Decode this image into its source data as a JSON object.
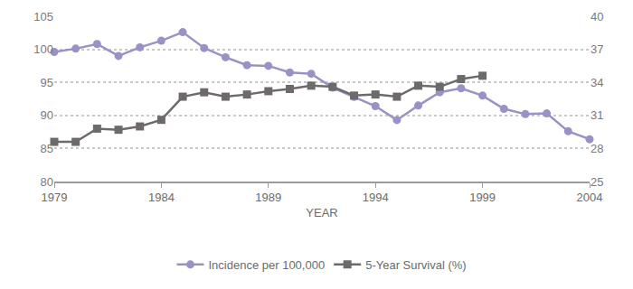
{
  "chart_data": {
    "type": "line",
    "x_label": "YEAR",
    "x": [
      1979,
      1980,
      1981,
      1982,
      1983,
      1984,
      1985,
      1986,
      1987,
      1988,
      1989,
      1990,
      1991,
      1992,
      1993,
      1994,
      1995,
      1996,
      1997,
      1998,
      1999,
      2000,
      2001,
      2002,
      2003,
      2004
    ],
    "xlim": [
      1979,
      2004
    ],
    "xticks": [
      1979,
      1984,
      1989,
      1994,
      1999,
      2004
    ],
    "ylim": [
      80,
      105
    ],
    "yticks": [
      80,
      85,
      90,
      95,
      100,
      105
    ],
    "y2lim": [
      25,
      40
    ],
    "y2ticks": [
      25,
      28,
      31,
      34,
      37,
      40
    ],
    "grid": true,
    "legend": "bottom",
    "series": [
      {
        "name": "Incidence per 100,000",
        "color": "#9a92c6",
        "marker": "circle",
        "axis": "y",
        "values": [
          99.6,
          100.1,
          100.8,
          99.0,
          100.3,
          101.3,
          102.6,
          100.2,
          98.8,
          97.6,
          97.5,
          96.5,
          96.3,
          94.2,
          92.8,
          91.4,
          89.3,
          91.5,
          93.5,
          94.1,
          93.0,
          91.0,
          90.2,
          90.3,
          87.6,
          86.4
        ]
      },
      {
        "name": "5-Year Survival (%)",
        "color": "#6e6a6b",
        "marker": "square",
        "axis": "y2",
        "values": [
          28.6,
          28.6,
          29.8,
          29.7,
          30.0,
          30.6,
          32.7,
          33.1,
          32.7,
          32.9,
          33.2,
          33.4,
          33.7,
          33.6,
          32.8,
          32.9,
          32.7,
          33.7,
          33.6,
          34.3,
          34.6,
          null,
          null,
          null,
          null,
          null
        ]
      }
    ]
  }
}
